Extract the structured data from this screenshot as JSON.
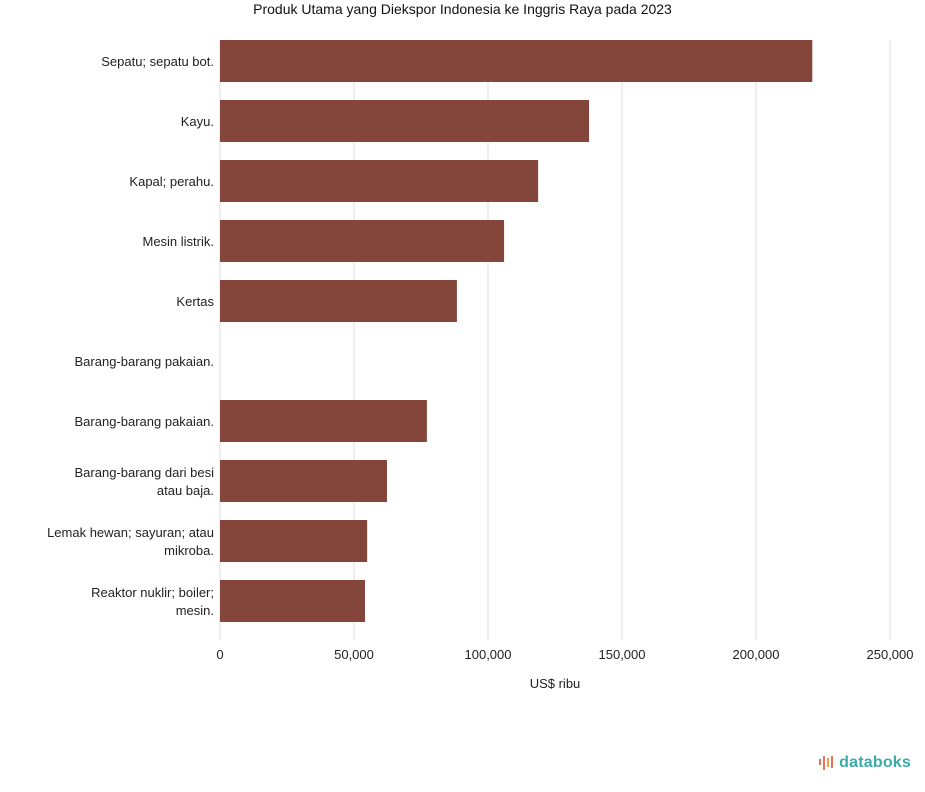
{
  "chart_data": {
    "type": "bar",
    "orientation": "horizontal",
    "title": "Produk Utama yang Diekspor Indonesia ke Inggris Raya pada 2023",
    "categories": [
      "Sepatu; sepatu bot.",
      "Kayu.",
      "Kapal; perahu.",
      "Mesin listrik.",
      "Kertas",
      "Barang-barang pakaian.",
      "Barang-barang pakaian.",
      "Barang-barang dari besi atau baja.",
      "Lemak hewan; sayuran; atau mikroba.",
      "Reaktor nuklir; boiler; mesin."
    ],
    "values": [
      221000,
      137700,
      118700,
      106000,
      88400,
      0,
      77200,
      62300,
      54900,
      54100
    ],
    "xlabel": "US$ ribu",
    "ylabel": "",
    "xlim": [
      0,
      250000
    ],
    "xticks": [
      0,
      50000,
      100000,
      150000,
      200000,
      250000
    ],
    "xtick_labels": [
      "0",
      "50,000",
      "100,000",
      "150,000",
      "200,000",
      "250,000"
    ],
    "grid": true,
    "bar_color": "#84453b"
  },
  "branding": {
    "logo_text": "databoks"
  }
}
